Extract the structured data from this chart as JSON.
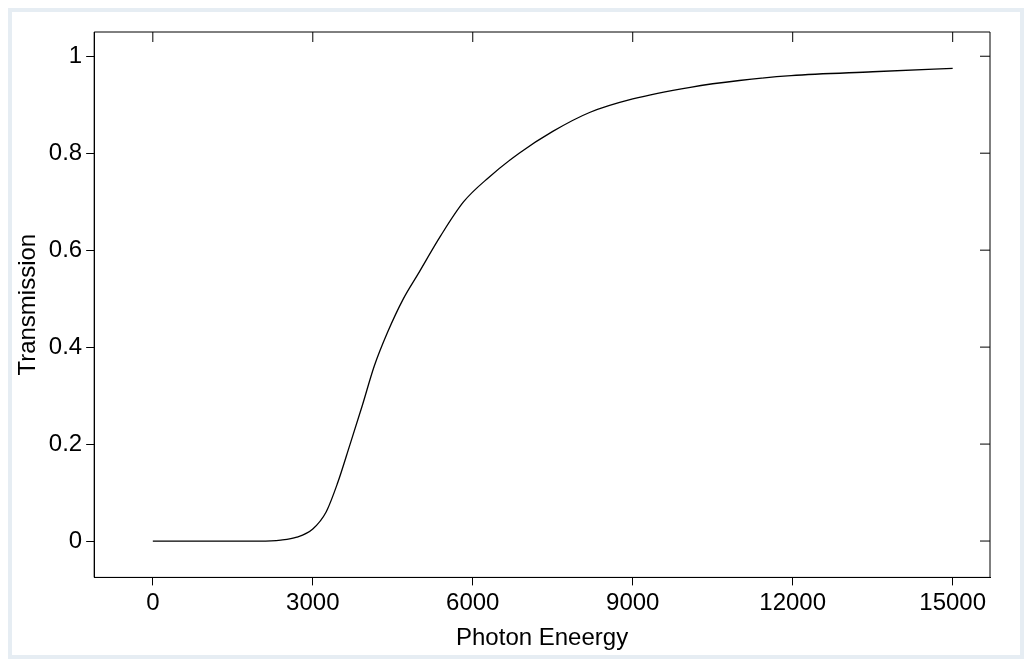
{
  "chart_data": {
    "type": "line",
    "xlabel": "Photon Eneergy",
    "ylabel": "Transmission",
    "x": [
      0,
      1000,
      2000,
      2400,
      2700,
      3000,
      3250,
      3460,
      3700,
      3930,
      4150,
      4400,
      4700,
      4970,
      5400,
      5830,
      6300,
      6870,
      7500,
      8190,
      9000,
      10080,
      11000,
      11970,
      13500,
      15000
    ],
    "series": [
      {
        "color": "#000000",
        "values": [
          0,
          0,
          0,
          0.002,
          0.008,
          0.025,
          0.06,
          0.118,
          0.2,
          0.28,
          0.36,
          0.43,
          0.5,
          0.55,
          0.63,
          0.7,
          0.75,
          0.8,
          0.845,
          0.884,
          0.912,
          0.936,
          0.95,
          0.96,
          0.968,
          0.975
        ]
      }
    ],
    "xlim": [
      -1100,
      15700
    ],
    "xticks": [
      0,
      3000,
      6000,
      9000,
      12000,
      15000
    ],
    "ylim": [
      -0.075,
      1.05
    ],
    "yticks": [
      0,
      0.2,
      0.4,
      0.6,
      0.8,
      1
    ],
    "grid": false,
    "legend": false,
    "marker": "none",
    "line_style": "solid"
  }
}
